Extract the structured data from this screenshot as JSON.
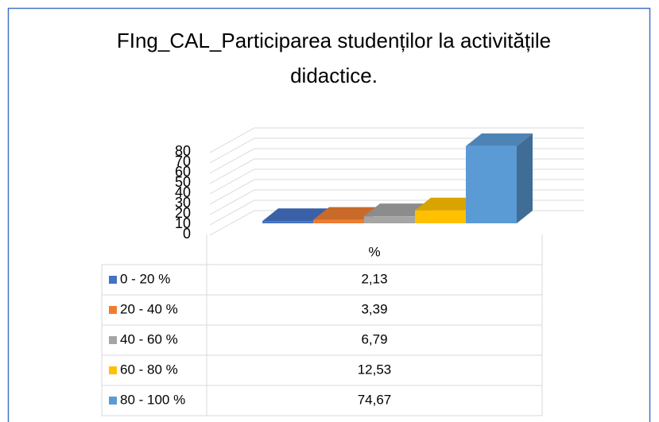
{
  "chart_data": {
    "type": "bar3d",
    "title": "FIng_CAL_Participarea studenților la activitățile didactice.",
    "categories": [
      "%"
    ],
    "series": [
      {
        "name": "0 - 20 %",
        "color": "#4472c4",
        "values": [
          2.13
        ],
        "value_labels": [
          "2,13"
        ]
      },
      {
        "name": "20 - 40 %",
        "color": "#ed7d31",
        "values": [
          3.39
        ],
        "value_labels": [
          "3,39"
        ]
      },
      {
        "name": "40 - 60 %",
        "color": "#a5a5a5",
        "values": [
          6.79
        ],
        "value_labels": [
          "6,79"
        ]
      },
      {
        "name": "60 - 80 %",
        "color": "#ffc000",
        "values": [
          12.53
        ],
        "value_labels": [
          "12,53"
        ]
      },
      {
        "name": "80 - 100 %",
        "color": "#5b9bd5",
        "values": [
          74.67
        ],
        "value_labels": [
          "74,67"
        ]
      }
    ],
    "ylim": [
      0,
      80
    ],
    "yticks": [
      0,
      10,
      20,
      30,
      40,
      50,
      60,
      70,
      80
    ],
    "grid": true
  }
}
